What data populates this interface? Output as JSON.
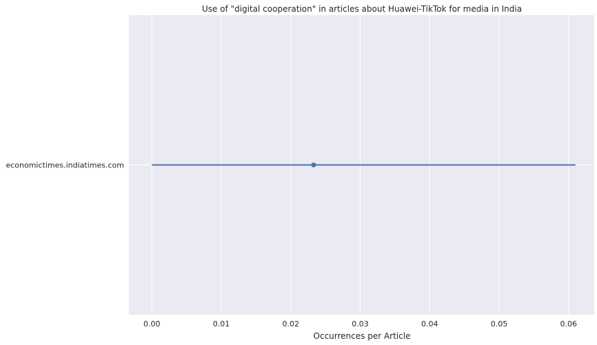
{
  "chart_data": {
    "type": "point-errorbar",
    "title": "Use of \"digital cooperation\" in articles about Huawei-TikTok for media in India",
    "xlabel": "Occurrences per Article",
    "ylabel": "",
    "categories": [
      "economictimes.indiatimes.com"
    ],
    "points": [
      {
        "category": "economictimes.indiatimes.com",
        "value": 0.0233,
        "ci_low": 0.0,
        "ci_high": 0.061
      }
    ],
    "xlim": [
      -0.0033,
      0.0637
    ],
    "xticks": [
      0.0,
      0.01,
      0.02,
      0.03,
      0.04,
      0.05,
      0.06
    ],
    "xtick_labels": [
      "0.00",
      "0.01",
      "0.02",
      "0.03",
      "0.04",
      "0.05",
      "0.06"
    ],
    "grid": true,
    "colors": {
      "background": "#eaeaf2",
      "grid": "#ffffff",
      "series": "#4c72b0"
    }
  }
}
